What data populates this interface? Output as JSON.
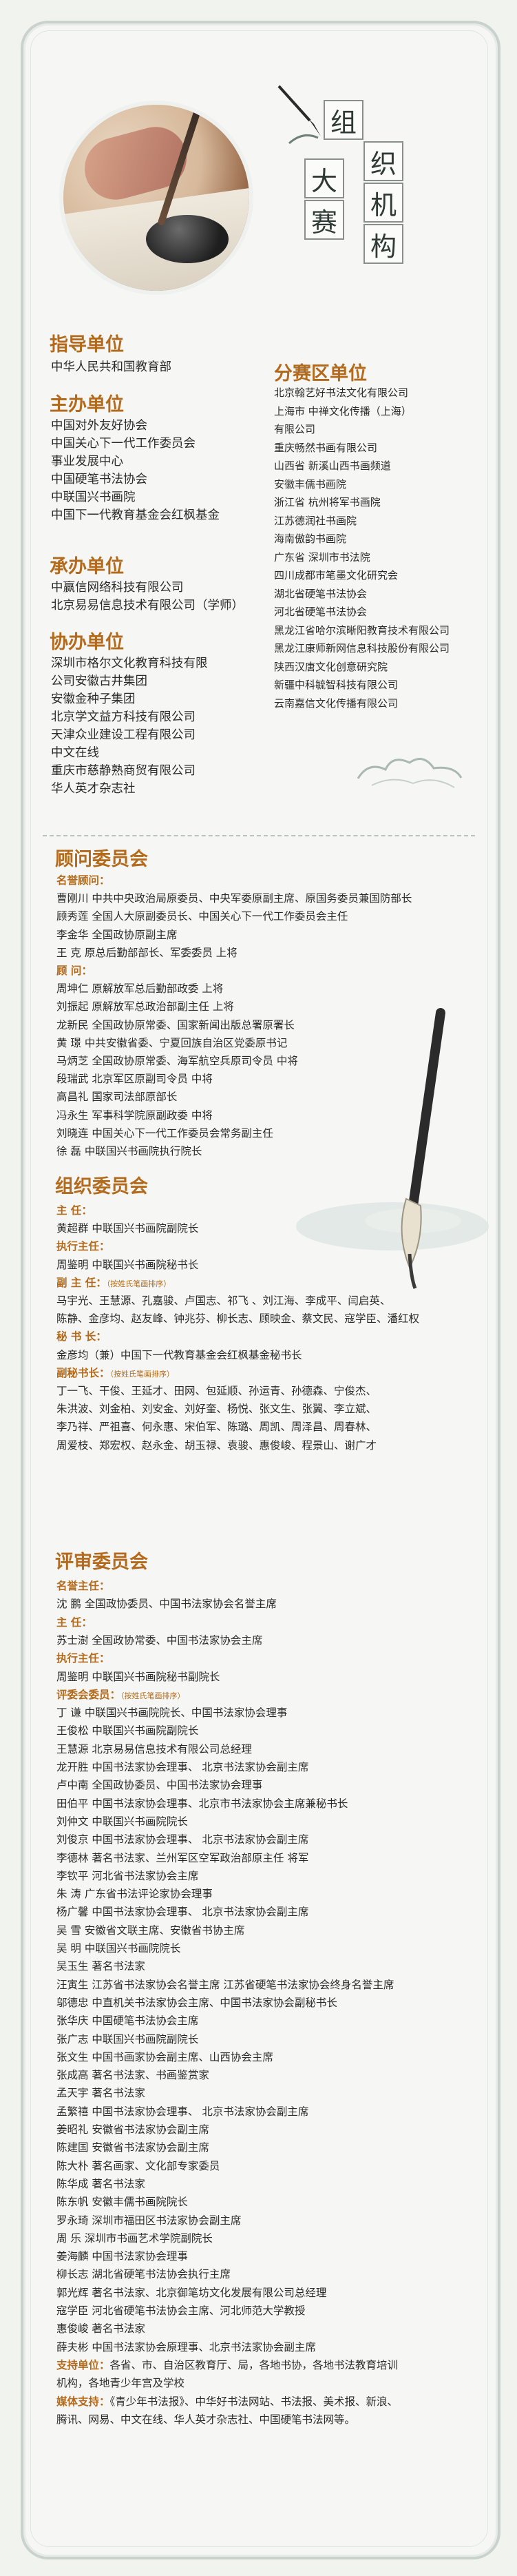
{
  "title_chars": [
    "组",
    "织",
    "机",
    "构",
    "大",
    "赛"
  ],
  "left_sections": [
    {
      "heading": "指导单位",
      "items": [
        "中华人民共和国教育部"
      ]
    },
    {
      "heading": "主办单位",
      "items": [
        "中国对外友好协会",
        "中国关心下一代工作委员会",
        "事业发展中心",
        "中国硬笔书法协会",
        "中联国兴书画院",
        "中国下一代教育基金会红枫基金"
      ]
    },
    {
      "heading": "承办单位",
      "items": [
        "中赢信网络科技有限公司",
        "北京易易信息技术有限公司（学师）"
      ]
    },
    {
      "heading": "协办单位",
      "items": [
        "深圳市格尔文化教育科技有限",
        "公司安徽古井集团",
        "安徽金种子集团",
        "北京学文益方科技有限公司",
        "天津众业建设工程有限公司",
        "中文在线",
        "重庆市慈静熟商贸有限公司",
        "华人英才杂志社"
      ]
    }
  ],
  "right_section": {
    "heading": "分赛区单位",
    "items": [
      "北京翰艺好书法文化有限公司",
      "上海市 中禅文化传播（上海）",
      "有限公司",
      "重庆畅然书画有限公司",
      "山西省 新溪山西书画频道",
      "安徽丰儒书画院",
      "浙江省 杭州将军书画院",
      "江苏德润社书画院",
      "海南傲韵书画院",
      "广东省 深圳市书法院",
      "四川成都市笔墨文化研究会",
      "湖北省硬笔书法协会",
      "河北省硬笔书法协会",
      "黑龙江省哈尔滨晰阳教育技术有限公司",
      "黑龙江康师新网信息科技股份有限公司",
      "陕西汉唐文化创意研究院",
      "新疆中科毓智科技有限公司",
      "云南嘉信文化传播有限公司"
    ]
  },
  "advisory": {
    "heading": "顾问委员会",
    "lines": [
      {
        "t": "名誉顾问：",
        "hl": true
      },
      {
        "t": "曹刚川  中共中央政治局原委员、中央军委原副主席、原国务委员兼国防部长"
      },
      {
        "t": "顾秀莲  全国人大原副委员长、中国关心下一代工作委员会主任"
      },
      {
        "t": "李金华  全国政协原副主席"
      },
      {
        "t": "王  克  原总后勤部部长、军委委员  上将"
      },
      {
        "t": "顾    问：",
        "hl": true
      },
      {
        "t": "周坤仁  原解放军总后勤部政委  上将"
      },
      {
        "t": "刘振起  原解放军总政治部副主任  上将"
      },
      {
        "t": "龙新民  全国政协原常委、国家新闻出版总署原署长"
      },
      {
        "t": "黄  璟  中共安徽省委、宁夏回族自治区党委原书记"
      },
      {
        "t": "马炳芝  全国政协原常委、海军航空兵原司令员  中将"
      },
      {
        "t": "段瑞武  北京军区原副司令员  中将"
      },
      {
        "t": "高昌礼  国家司法部原部长"
      },
      {
        "t": "冯永生  军事科学院原副政委    中将"
      },
      {
        "t": "刘晓连  中国关心下一代工作委员会常务副主任"
      },
      {
        "t": "徐  磊  中联国兴书画院执行院长"
      }
    ]
  },
  "organizing": {
    "heading": "组织委员会",
    "lines": [
      {
        "t": "主    任：",
        "hl": true
      },
      {
        "t": "黄超群    中联国兴书画院副院长"
      },
      {
        "t": "执行主任：",
        "hl": true
      },
      {
        "t": "周鉴明    中联国兴书画院秘书长"
      },
      {
        "t": "副 主 任：",
        "hl": true,
        "note": "（按姓氏笔画排序）"
      },
      {
        "t": "马宇光、王慧源、孔嘉骏、卢国志、祁飞 、刘江海、李成平、闫启英、"
      },
      {
        "t": "陈静、金彦均、赵友峰、钟兆芬、柳长志、顾映金、蔡文民、寇学臣、潘红权"
      },
      {
        "t": "秘 书 长：",
        "hl": true
      },
      {
        "t": "金彦均（兼）中国下一代教育基金会红枫基金秘书长"
      },
      {
        "t": "副秘书长：",
        "hl": true,
        "note": "（按姓氏笔画排序）"
      },
      {
        "t": "丁一飞、干俊、王延才、田网、包延顺、孙运青、孙德森、宁俊杰、"
      },
      {
        "t": "朱洪波、刘金柏、刘安金、刘好奎、杨悦、张文生、张翼、李立斌、"
      },
      {
        "t": "李乃祥、严祖喜、何永惠、宋伯军、陈璐、周凯、周泽昌、周春林、"
      },
      {
        "t": "周爱枝、郑宏权、赵永金、胡玉禄、袁骏、惠俊峻、程景山、谢广才"
      }
    ]
  },
  "review": {
    "heading": "评审委员会",
    "lines": [
      {
        "t": "名誉主任：",
        "hl": true
      },
      {
        "t": "沈  鹏    全国政协委员、中国书法家协会名誉主席"
      },
      {
        "t": "主    任：",
        "hl": true
      },
      {
        "t": "苏士澍  全国政协常委、中国书法家协会主席"
      },
      {
        "t": "执行主任：",
        "hl": true
      },
      {
        "t": "周鉴明    中联国兴书画院秘书副院长"
      },
      {
        "t": "评委会委员：",
        "hl": true,
        "note": "（按姓氏笔画排序）"
      },
      {
        "t": "丁  谦    中联国兴书画院院长、中国书法家协会理事"
      },
      {
        "t": "王俊松    中联国兴书画院副院长"
      },
      {
        "t": "王慧源    北京易易信息技术有限公司总经理"
      },
      {
        "t": "龙开胜    中国书法家协会理事、  北京书法家协会副主席"
      },
      {
        "t": "卢中南    全国政协委员、中国书法家协会理事"
      },
      {
        "t": "田伯平    中国书法家协会理事、北京市书法家协会主席兼秘书长"
      },
      {
        "t": "刘仲文    中联国兴书画院院长"
      },
      {
        "t": "刘俊京    中国书法家协会理事、  北京书法家协会副主席"
      },
      {
        "t": "李德林    著名书法家、兰州军区空军政治部原主任 将军"
      },
      {
        "t": "李钦平    河北省书法家协会主席"
      },
      {
        "t": "朱  涛    广东省书法评论家协会理事"
      },
      {
        "t": "杨广馨    中国书法家协会理事、  北京书法家协会副主席"
      },
      {
        "t": "吴  雪    安徽省文联主席、安徽省书协主席"
      },
      {
        "t": "吴  明    中联国兴书画院院长"
      },
      {
        "t": "吴玉生    著名书法家"
      },
      {
        "t": "汪寅生    江苏省书法家协会名誉主席  江苏省硬笔书法家协会终身名誉主席"
      },
      {
        "t": "邬德忠    中直机关书法家协会主席、中国书法家协会副秘书长"
      },
      {
        "t": "张华庆    中国硬笔书法协会主席"
      },
      {
        "t": "张广志    中联国兴书画院副院长"
      },
      {
        "t": "张文生    中国书画家协会副主席、山西协会主席"
      },
      {
        "t": "张成高    著名书法家、书画鉴赏家"
      },
      {
        "t": "孟天宇    著名书法家"
      },
      {
        "t": "孟繁禧    中国书法家协会理事、  北京书法家协会副主席"
      },
      {
        "t": "姜昭礼    安徽省书法家协会副主席"
      },
      {
        "t": "陈建国    安徽省书法家协会副主席"
      },
      {
        "t": "陈大朴    著名画家、文化部专家委员"
      },
      {
        "t": "陈华成    著名书法家"
      },
      {
        "t": "陈东帆    安徽丰儒书画院院长"
      },
      {
        "t": "罗永琦    深圳市福田区书法家协会副主席"
      },
      {
        "t": "周  乐    深圳市书画艺术学院副院长"
      },
      {
        "t": "姜海麟    中国书法家协会理事"
      },
      {
        "t": "柳长志    湖北省硬笔书法协会执行主席"
      },
      {
        "t": "郭光辉    著名书法家、北京御笔坊文化发展有限公司总经理"
      },
      {
        "t": "寇学臣    河北省硬笔书法协会主席、河北师范大学教授"
      },
      {
        "t": "惠俊峻    著名书法家"
      },
      {
        "t": "薛夫彬    中国书法家协会原理事、北京书法家协会副主席"
      },
      {
        "t": "支持单位：各省、市、自治区教育厅、局，各地书协，各地书法教育培训",
        "hl2": true
      },
      {
        "t": "机构，各地青少年宫及学校"
      },
      {
        "t": "媒体支持：《青少年书法报》、中华好书法网站、书法报、美术报、新浪、",
        "hl2": true
      },
      {
        "t": "腾讯、网易、中文在线、华人英才杂志社、中国硬笔书法网等。"
      }
    ]
  }
}
